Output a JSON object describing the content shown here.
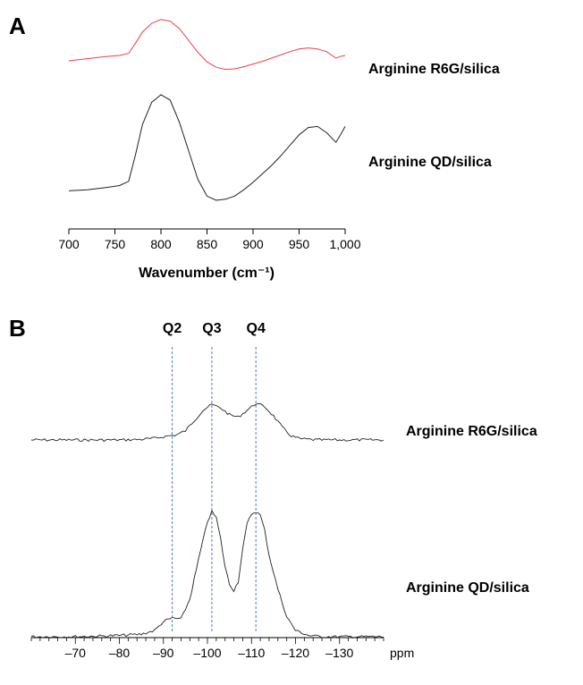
{
  "chart_data": [
    {
      "panel": "A",
      "type": "line",
      "xlabel": "Wavenumber (cm⁻¹)",
      "xlim": [
        700,
        1000
      ],
      "xticks": [
        700,
        750,
        800,
        850,
        900,
        950,
        1000
      ],
      "xtick_labels": [
        "700",
        "750",
        "800",
        "850",
        "900",
        "950",
        "1,000"
      ],
      "series": [
        {
          "name": "Arginine R6G/silica",
          "color": "#e8424a",
          "x": [
            700,
            720,
            740,
            755,
            765,
            772,
            780,
            790,
            800,
            810,
            820,
            830,
            840,
            850,
            860,
            870,
            880,
            890,
            900,
            910,
            920,
            930,
            940,
            950,
            960,
            970,
            980,
            990,
            995,
            1000
          ],
          "y": [
            0.2,
            0.24,
            0.28,
            0.3,
            0.34,
            0.52,
            0.74,
            0.9,
            0.97,
            0.94,
            0.8,
            0.58,
            0.36,
            0.18,
            0.08,
            0.04,
            0.05,
            0.09,
            0.14,
            0.19,
            0.25,
            0.31,
            0.37,
            0.42,
            0.44,
            0.42,
            0.37,
            0.25,
            0.28,
            0.3
          ]
        },
        {
          "name": "Arginine QD/silica",
          "color": "#222222",
          "x": [
            700,
            720,
            740,
            755,
            765,
            772,
            780,
            790,
            800,
            810,
            820,
            830,
            840,
            850,
            860,
            870,
            880,
            890,
            900,
            910,
            920,
            930,
            940,
            950,
            960,
            970,
            980,
            990,
            995,
            1000
          ],
          "y": [
            0.09,
            0.1,
            0.12,
            0.14,
            0.18,
            0.42,
            0.72,
            0.93,
            1.0,
            0.95,
            0.74,
            0.47,
            0.2,
            0.04,
            0.0,
            0.01,
            0.04,
            0.1,
            0.17,
            0.25,
            0.33,
            0.42,
            0.52,
            0.62,
            0.69,
            0.7,
            0.64,
            0.55,
            0.62,
            0.7
          ]
        }
      ]
    },
    {
      "panel": "B",
      "type": "line",
      "xlabel": "ppm",
      "xlim": [
        -60,
        -140
      ],
      "xticks": [
        -70,
        -80,
        -90,
        -100,
        -110,
        -120,
        -130
      ],
      "xtick_labels": [
        "–70",
        "–80",
        "–90",
        "–100",
        "–110",
        "–120",
        "–130"
      ],
      "reference_lines": [
        {
          "label": "Q2",
          "x": -92
        },
        {
          "label": "Q3",
          "x": -101
        },
        {
          "label": "Q4",
          "x": -111
        }
      ],
      "series": [
        {
          "name": "Arginine R6G/silica",
          "color": "#222222",
          "x": [
            -60,
            -70,
            -80,
            -85,
            -88,
            -91,
            -93,
            -95,
            -97,
            -99,
            -101,
            -103,
            -105,
            -107,
            -109,
            -111,
            -113,
            -115,
            -117,
            -119,
            -121,
            -125,
            -130,
            -135,
            -140
          ],
          "y": [
            0.0,
            0.0,
            0.0,
            0.01,
            0.03,
            0.07,
            0.09,
            0.16,
            0.34,
            0.52,
            0.62,
            0.56,
            0.44,
            0.4,
            0.52,
            0.64,
            0.58,
            0.42,
            0.22,
            0.07,
            0.02,
            0.0,
            0.0,
            0.0,
            0.0
          ]
        },
        {
          "name": "Arginine QD/silica",
          "color": "#222222",
          "x": [
            -60,
            -70,
            -80,
            -85,
            -88,
            -90,
            -92,
            -94,
            -96,
            -98,
            -100,
            -101,
            -102,
            -103,
            -104,
            -105,
            -106,
            -107,
            -108,
            -109,
            -110,
            -111,
            -112,
            -113,
            -114,
            -116,
            -118,
            -120,
            -123,
            -126,
            -130,
            -135,
            -140
          ],
          "y": [
            0.0,
            0.0,
            0.01,
            0.02,
            0.05,
            0.12,
            0.15,
            0.14,
            0.3,
            0.62,
            0.92,
            1.0,
            0.95,
            0.78,
            0.56,
            0.42,
            0.37,
            0.44,
            0.7,
            0.9,
            0.98,
            1.0,
            0.97,
            0.85,
            0.65,
            0.38,
            0.16,
            0.05,
            0.01,
            0.0,
            0.0,
            0.0,
            0.0
          ]
        }
      ]
    }
  ]
}
